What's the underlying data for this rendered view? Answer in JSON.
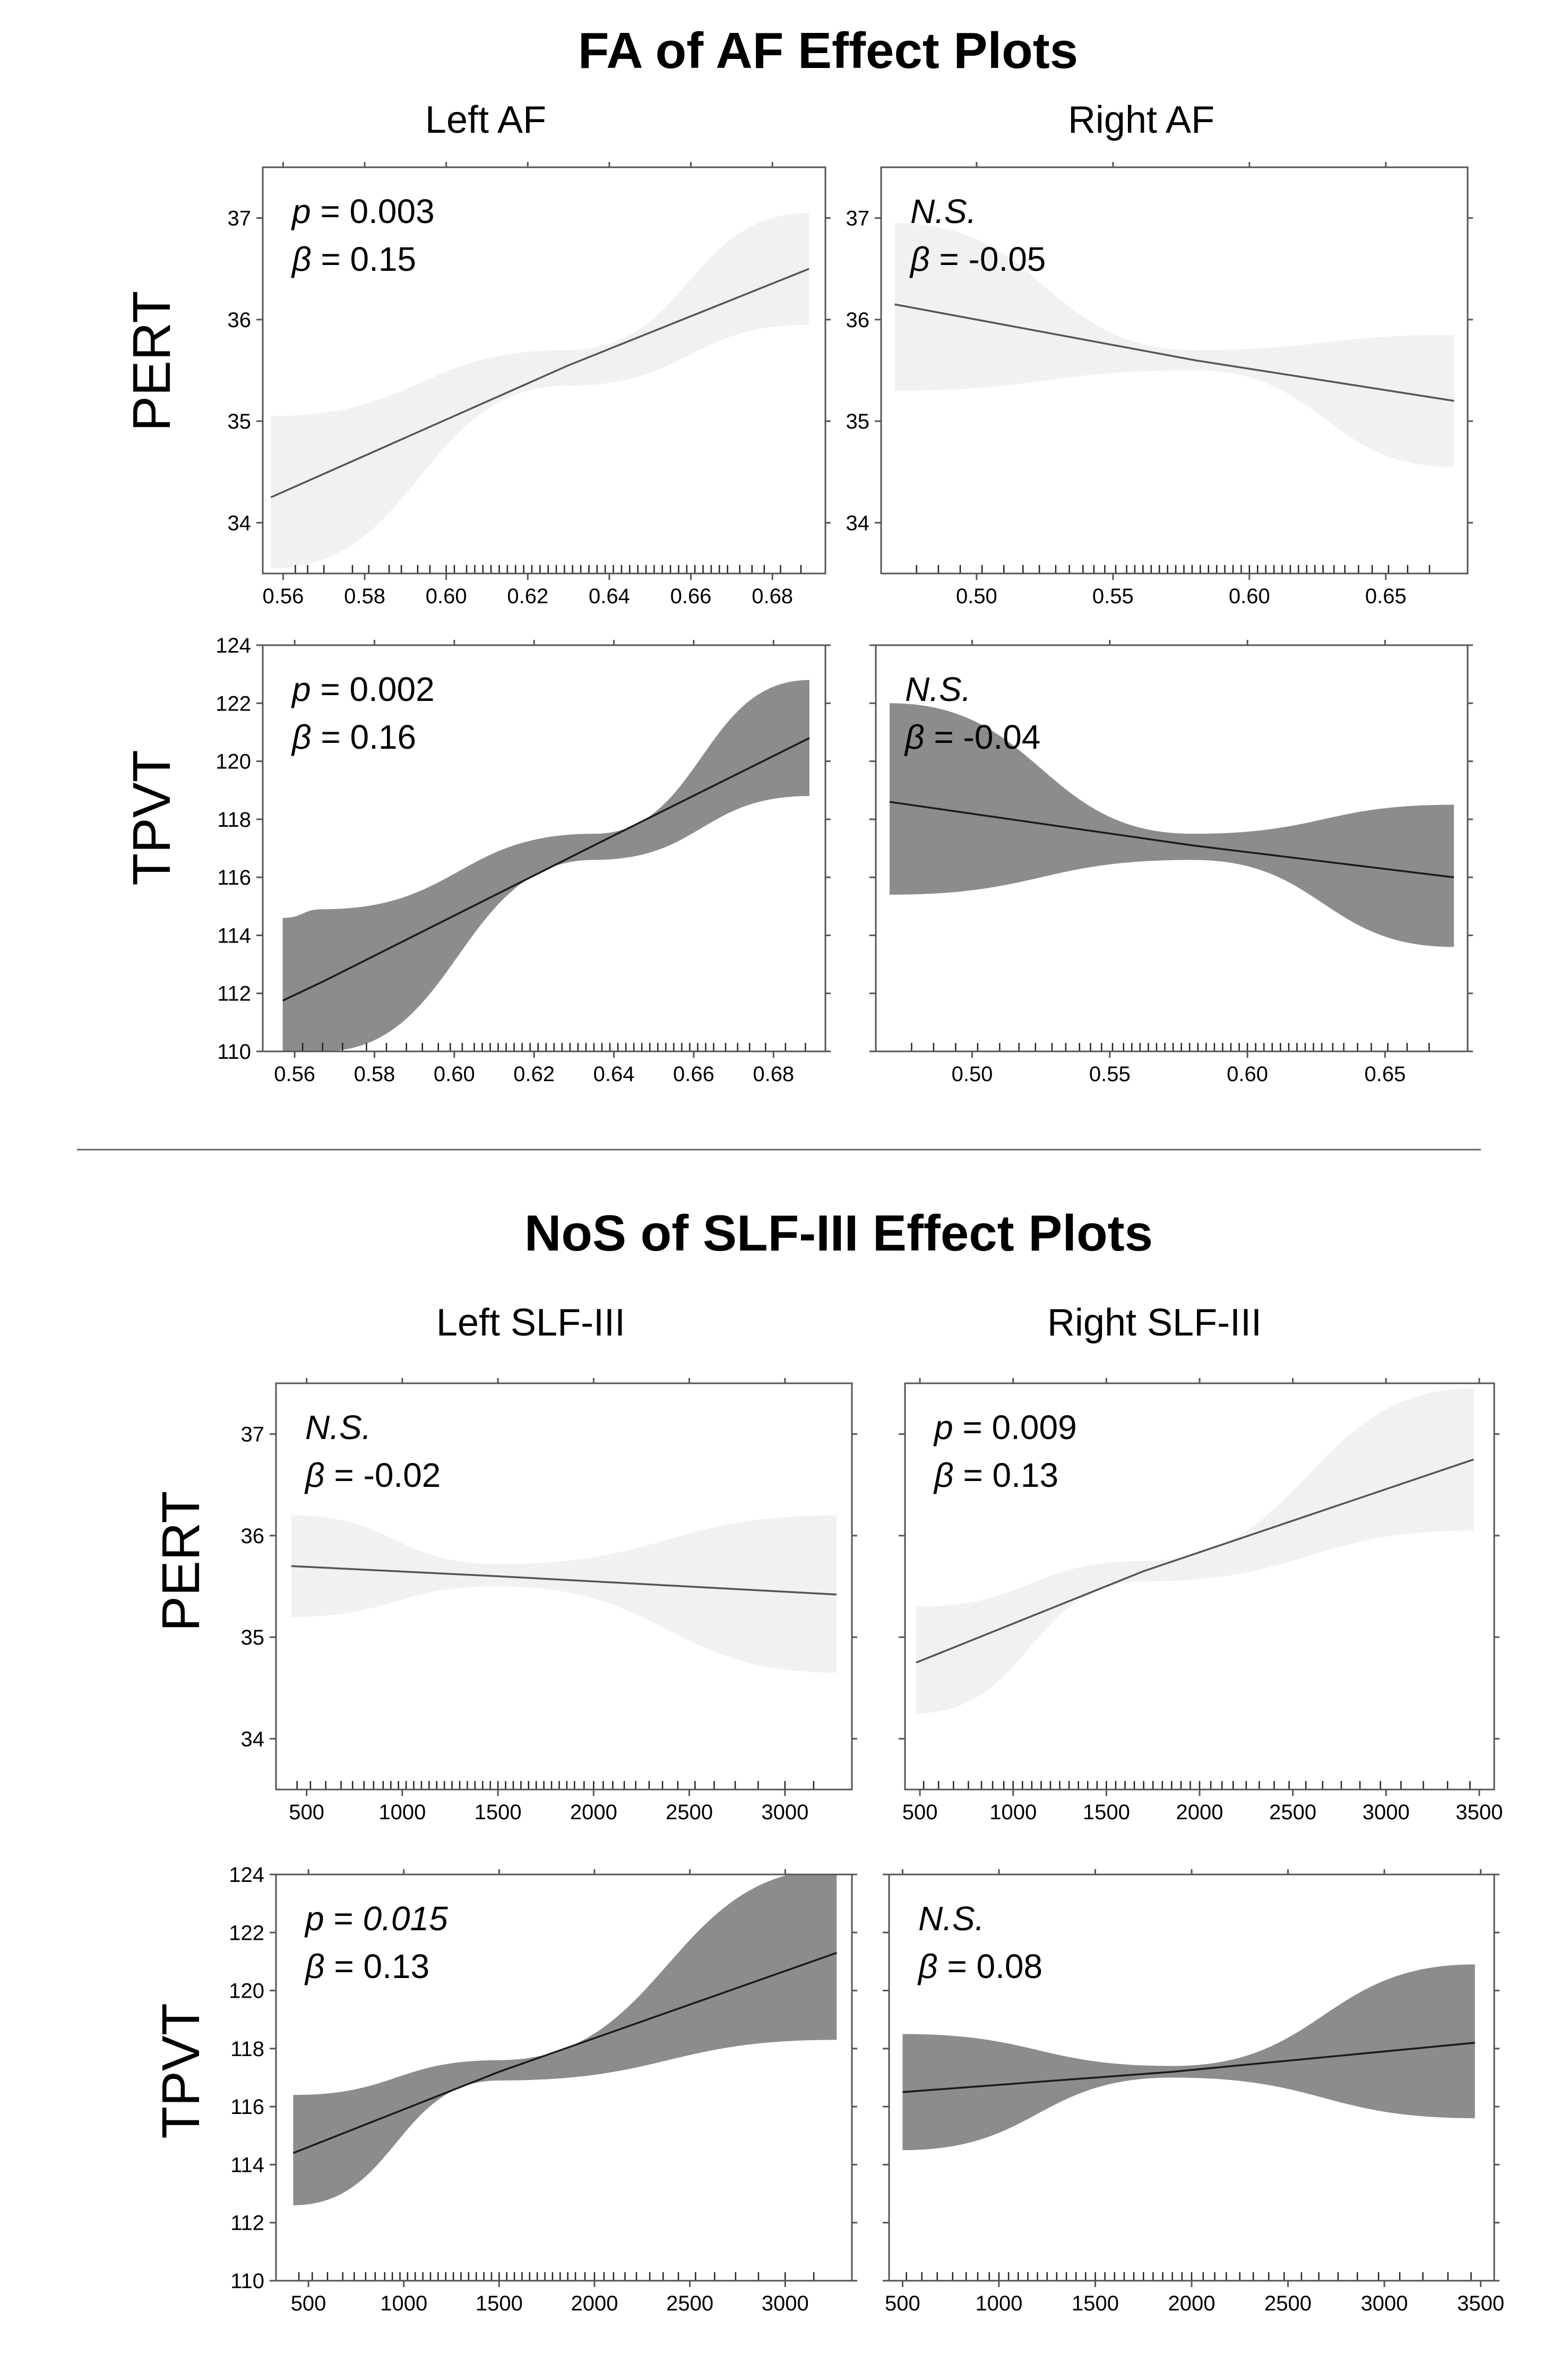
{
  "figure": {
    "section1_title": "FA of AF Effect Plots",
    "section2_title": "NoS of SLF-III Effect Plots",
    "section1_columns": [
      "Left AF",
      "Right AF"
    ],
    "section2_columns": [
      "Left SLF-III",
      "Right SLF-III"
    ],
    "row_labels": [
      "PERT",
      "TPVT"
    ]
  },
  "colors": {
    "pert_band": "#f0f1f2",
    "pert_line": "#555555",
    "tpvt_band": "#8c8c8c",
    "tpvt_line": "#1a1a1a"
  },
  "chart_data": [
    {
      "id": "fa_left_pert",
      "type": "line",
      "section": "FA of AF Effect Plots",
      "column": "Left AF",
      "row": "PERT",
      "p_text": "p = 0.003",
      "p_italic_num": false,
      "beta_text": "β = 0.15",
      "ns": false,
      "xlim": [
        0.555,
        0.693
      ],
      "ylim": [
        33.5,
        37.5
      ],
      "xticks": [
        0.56,
        0.58,
        0.6,
        0.62,
        0.64,
        0.66,
        0.68
      ],
      "xtick_labels": [
        "0.56",
        "0.58",
        "0.60",
        "0.62",
        "0.64",
        "0.66",
        "0.68"
      ],
      "yticks": [
        34,
        35,
        36,
        37
      ],
      "ytick_labels": [
        "34",
        "35",
        "36",
        "37"
      ],
      "x": [
        0.557,
        0.63,
        0.689
      ],
      "fit": [
        34.25,
        35.55,
        36.5
      ],
      "lower": [
        33.55,
        35.35,
        35.95
      ],
      "upper": [
        35.05,
        35.7,
        37.05
      ],
      "rug": [
        0.563,
        0.566,
        0.57,
        0.577,
        0.581,
        0.586,
        0.589,
        0.593,
        0.596,
        0.6,
        0.602,
        0.605,
        0.607,
        0.609,
        0.611,
        0.613,
        0.615,
        0.617,
        0.619,
        0.621,
        0.623,
        0.625,
        0.627,
        0.629,
        0.631,
        0.633,
        0.635,
        0.637,
        0.639,
        0.641,
        0.643,
        0.645,
        0.647,
        0.649,
        0.651,
        0.653,
        0.655,
        0.657,
        0.659,
        0.661,
        0.663,
        0.665,
        0.667,
        0.669,
        0.672,
        0.675,
        0.678,
        0.682,
        0.687
      ]
    },
    {
      "id": "fa_right_pert",
      "type": "line",
      "section": "FA of AF Effect Plots",
      "column": "Right AF",
      "row": "PERT",
      "p_text": "N.S.",
      "p_italic_num": false,
      "beta_text": "β = -0.05",
      "ns": true,
      "xlim": [
        0.465,
        0.68
      ],
      "ylim": [
        33.5,
        37.5
      ],
      "xticks": [
        0.5,
        0.55,
        0.6,
        0.65
      ],
      "xtick_labels": [
        "0.50",
        "0.55",
        "0.60",
        "0.65"
      ],
      "yticks": [
        34,
        35,
        36,
        37
      ],
      "ytick_labels": [
        "34",
        "35",
        "36",
        "37"
      ],
      "x": [
        0.47,
        0.58,
        0.675
      ],
      "fit": [
        36.15,
        35.6,
        35.2
      ],
      "lower": [
        35.3,
        35.5,
        34.55
      ],
      "upper": [
        36.95,
        35.7,
        35.85
      ],
      "rug": [
        0.478,
        0.486,
        0.494,
        0.502,
        0.51,
        0.517,
        0.523,
        0.529,
        0.534,
        0.539,
        0.543,
        0.547,
        0.551,
        0.555,
        0.558,
        0.561,
        0.564,
        0.567,
        0.57,
        0.573,
        0.576,
        0.579,
        0.582,
        0.585,
        0.588,
        0.591,
        0.594,
        0.597,
        0.6,
        0.603,
        0.606,
        0.609,
        0.612,
        0.615,
        0.618,
        0.621,
        0.624,
        0.627,
        0.631,
        0.635,
        0.64,
        0.645,
        0.651,
        0.658,
        0.666
      ]
    },
    {
      "id": "fa_left_tpvt",
      "type": "line",
      "section": "FA of AF Effect Plots",
      "column": "Left AF",
      "row": "TPVT",
      "p_text": "p = 0.002",
      "p_italic_num": false,
      "beta_text": "β = 0.16",
      "ns": false,
      "xlim": [
        0.552,
        0.693
      ],
      "ylim": [
        110,
        124
      ],
      "xticks": [
        0.56,
        0.58,
        0.6,
        0.62,
        0.64,
        0.66,
        0.68
      ],
      "xtick_labels": [
        "0.56",
        "0.58",
        "0.60",
        "0.62",
        "0.64",
        "0.66",
        "0.68"
      ],
      "yticks": [
        110,
        112,
        114,
        116,
        118,
        120,
        122,
        124
      ],
      "ytick_labels": [
        "110",
        "112",
        "114",
        "116",
        "118",
        "120",
        "122",
        "124"
      ],
      "x": [
        0.557,
        0.567,
        0.635,
        0.689
      ],
      "fit": [
        111.75,
        112.4,
        117.1,
        120.8
      ],
      "lower": [
        109.5,
        110.0,
        116.6,
        118.8
      ],
      "upper": [
        114.6,
        114.9,
        117.5,
        122.8
      ],
      "rug": [
        0.562,
        0.567,
        0.572,
        0.578,
        0.583,
        0.588,
        0.592,
        0.596,
        0.599,
        0.602,
        0.605,
        0.607,
        0.609,
        0.611,
        0.613,
        0.615,
        0.617,
        0.619,
        0.621,
        0.623,
        0.625,
        0.627,
        0.629,
        0.631,
        0.633,
        0.635,
        0.637,
        0.639,
        0.641,
        0.643,
        0.645,
        0.647,
        0.649,
        0.651,
        0.653,
        0.655,
        0.657,
        0.659,
        0.661,
        0.663,
        0.665,
        0.668,
        0.671,
        0.674,
        0.678,
        0.683,
        0.688
      ]
    },
    {
      "id": "fa_right_tpvt",
      "type": "line",
      "section": "FA of AF Effect Plots",
      "column": "Right AF",
      "row": "TPVT",
      "p_text": "N.S.",
      "p_italic_num": false,
      "beta_text": "β = -0.04",
      "ns": true,
      "xlim": [
        0.465,
        0.68
      ],
      "ylim": [
        110,
        124
      ],
      "xticks": [
        0.5,
        0.55,
        0.6,
        0.65
      ],
      "xtick_labels": [
        "0.50",
        "0.55",
        "0.60",
        "0.65"
      ],
      "yticks": [
        110,
        112,
        114,
        116,
        118,
        120,
        122,
        124
      ],
      "ytick_labels": [
        "",
        "",
        "",
        "",
        "",
        "",
        "",
        ""
      ],
      "x": [
        0.47,
        0.58,
        0.675
      ],
      "fit": [
        118.6,
        117.1,
        116.0
      ],
      "lower": [
        115.4,
        116.6,
        113.6
      ],
      "upper": [
        122.0,
        117.5,
        118.5
      ],
      "rug": [
        0.478,
        0.486,
        0.494,
        0.502,
        0.51,
        0.517,
        0.523,
        0.529,
        0.534,
        0.539,
        0.543,
        0.547,
        0.551,
        0.555,
        0.558,
        0.561,
        0.564,
        0.567,
        0.57,
        0.573,
        0.576,
        0.579,
        0.582,
        0.585,
        0.588,
        0.591,
        0.594,
        0.597,
        0.6,
        0.603,
        0.606,
        0.609,
        0.612,
        0.615,
        0.618,
        0.621,
        0.624,
        0.627,
        0.631,
        0.635,
        0.64,
        0.645,
        0.651,
        0.658,
        0.666
      ]
    },
    {
      "id": "nos_left_pert",
      "type": "line",
      "section": "NoS of SLF-III Effect Plots",
      "column": "Left SLF-III",
      "row": "PERT",
      "p_text": "N.S.",
      "p_italic_num": false,
      "beta_text": "β = -0.02",
      "ns": true,
      "xlim": [
        340,
        3350
      ],
      "ylim": [
        33.5,
        37.5
      ],
      "xticks": [
        500,
        1000,
        1500,
        2000,
        2500,
        3000
      ],
      "xtick_labels": [
        "500",
        "1000",
        "1500",
        "2000",
        "2500",
        "3000"
      ],
      "yticks": [
        34,
        35,
        36,
        37
      ],
      "ytick_labels": [
        "34",
        "35",
        "36",
        "37"
      ],
      "x": [
        420,
        1500,
        3270
      ],
      "fit": [
        35.7,
        35.6,
        35.42
      ],
      "lower": [
        35.2,
        35.5,
        34.65
      ],
      "upper": [
        36.2,
        35.72,
        36.2
      ],
      "rug": [
        450,
        520,
        600,
        680,
        740,
        800,
        850,
        900,
        940,
        980,
        1020,
        1060,
        1100,
        1140,
        1180,
        1220,
        1260,
        1300,
        1340,
        1380,
        1420,
        1460,
        1500,
        1540,
        1580,
        1620,
        1660,
        1700,
        1740,
        1780,
        1820,
        1860,
        1900,
        1950,
        2000,
        2050,
        2100,
        2160,
        2220,
        2290,
        2360,
        2440,
        2530,
        2630,
        2740,
        2860,
        3000,
        3150
      ]
    },
    {
      "id": "nos_right_pert",
      "type": "line",
      "section": "NoS of SLF-III Effect Plots",
      "column": "Right SLF-III",
      "row": "PERT",
      "p_text": "p = 0.009",
      "p_italic_num": false,
      "beta_text": "β = 0.13",
      "ns": false,
      "xlim": [
        420,
        3580
      ],
      "ylim": [
        33.5,
        37.5
      ],
      "xticks": [
        500,
        1000,
        1500,
        2000,
        2500,
        3000,
        3500
      ],
      "xtick_labels": [
        "500",
        "1000",
        "1500",
        "2000",
        "2500",
        "3000",
        "3500"
      ],
      "yticks": [
        34,
        35,
        36,
        37
      ],
      "ytick_labels": [
        "",
        "",
        "",
        ""
      ],
      "x": [
        480,
        1700,
        3470
      ],
      "fit": [
        34.75,
        35.65,
        36.75
      ],
      "lower": [
        34.25,
        35.55,
        36.05
      ],
      "upper": [
        35.3,
        35.75,
        37.45
      ],
      "rug": [
        520,
        600,
        680,
        760,
        830,
        890,
        950,
        1000,
        1050,
        1100,
        1150,
        1200,
        1250,
        1300,
        1350,
        1400,
        1450,
        1500,
        1550,
        1600,
        1650,
        1700,
        1750,
        1800,
        1850,
        1900,
        1950,
        2000,
        2060,
        2120,
        2180,
        2250,
        2320,
        2400,
        2480,
        2570,
        2660,
        2760,
        2860,
        2970,
        3080,
        3200,
        3330,
        3450
      ]
    },
    {
      "id": "nos_left_tpvt",
      "type": "line",
      "section": "NoS of SLF-III Effect Plots",
      "column": "Left SLF-III",
      "row": "TPVT",
      "p_text": "p = 0.015",
      "p_italic_num": true,
      "beta_text": "β = 0.13",
      "ns": false,
      "xlim": [
        330,
        3350
      ],
      "ylim": [
        110,
        124
      ],
      "xticks": [
        500,
        1000,
        1500,
        2000,
        2500,
        3000
      ],
      "xtick_labels": [
        "500",
        "1000",
        "1500",
        "2000",
        "2500",
        "3000"
      ],
      "yticks": [
        110,
        112,
        114,
        116,
        118,
        120,
        122,
        124
      ],
      "ytick_labels": [
        "110",
        "112",
        "114",
        "116",
        "118",
        "120",
        "122",
        "124"
      ],
      "x": [
        420,
        1500,
        3270
      ],
      "fit": [
        114.4,
        117.2,
        121.3
      ],
      "lower": [
        112.6,
        116.9,
        118.3
      ],
      "upper": [
        116.4,
        117.6,
        124.2
      ],
      "rug": [
        450,
        520,
        600,
        680,
        740,
        800,
        850,
        900,
        940,
        980,
        1020,
        1060,
        1100,
        1140,
        1180,
        1220,
        1260,
        1300,
        1340,
        1380,
        1420,
        1460,
        1500,
        1540,
        1580,
        1620,
        1660,
        1700,
        1740,
        1780,
        1820,
        1860,
        1900,
        1950,
        2000,
        2050,
        2100,
        2160,
        2220,
        2290,
        2360,
        2440,
        2530,
        2630,
        2740,
        2860,
        3000,
        3150
      ]
    },
    {
      "id": "nos_right_tpvt",
      "type": "line",
      "section": "NoS of SLF-III Effect Plots",
      "column": "Right SLF-III",
      "row": "TPVT",
      "p_text": "N.S.",
      "p_italic_num": false,
      "beta_text": "β = 0.08",
      "ns": true,
      "xlim": [
        430,
        3570
      ],
      "ylim": [
        110,
        124
      ],
      "xticks": [
        500,
        1000,
        1500,
        2000,
        2500,
        3000,
        3500
      ],
      "xtick_labels": [
        "500",
        "1000",
        "1500",
        "2000",
        "2500",
        "3000",
        "3500"
      ],
      "yticks": [
        110,
        112,
        114,
        116,
        118,
        120,
        122,
        124
      ],
      "ytick_labels": [
        "",
        "",
        "",
        "",
        "",
        "",
        "",
        ""
      ],
      "x": [
        500,
        1900,
        3470
      ],
      "fit": [
        116.5,
        117.2,
        118.2
      ],
      "lower": [
        114.5,
        117.0,
        115.6
      ],
      "upper": [
        118.5,
        117.4,
        120.9
      ],
      "rug": [
        520,
        600,
        680,
        760,
        830,
        890,
        950,
        1000,
        1050,
        1100,
        1150,
        1200,
        1250,
        1300,
        1350,
        1400,
        1450,
        1500,
        1550,
        1600,
        1650,
        1700,
        1750,
        1800,
        1850,
        1900,
        1950,
        2000,
        2060,
        2120,
        2180,
        2250,
        2320,
        2400,
        2480,
        2570,
        2660,
        2760,
        2860,
        2970,
        3080,
        3200,
        3330,
        3450
      ]
    }
  ]
}
